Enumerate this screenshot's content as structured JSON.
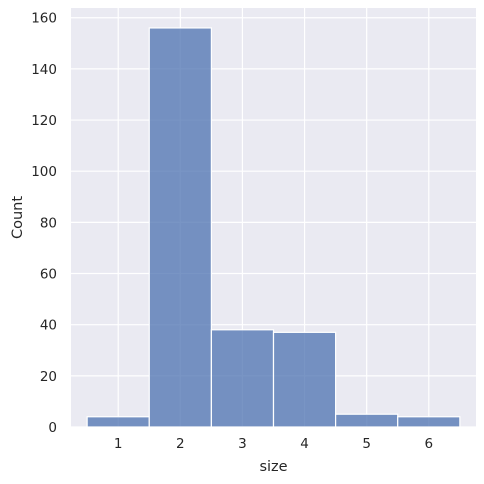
{
  "chart_data": {
    "type": "bar",
    "subtype": "histogram",
    "title": "",
    "xlabel": "size",
    "ylabel": "Count",
    "categories": [
      "1",
      "2",
      "3",
      "4",
      "5",
      "6"
    ],
    "bins": [
      {
        "start": 0.5,
        "end": 1.5,
        "count": 4
      },
      {
        "start": 1.5,
        "end": 2.5,
        "count": 156
      },
      {
        "start": 2.5,
        "end": 3.5,
        "count": 38
      },
      {
        "start": 3.5,
        "end": 4.5,
        "count": 37
      },
      {
        "start": 4.5,
        "end": 5.5,
        "count": 5
      },
      {
        "start": 5.5,
        "end": 6.5,
        "count": 4
      }
    ],
    "xlim": [
      0.24,
      6.76
    ],
    "ylim": [
      0,
      163.8
    ],
    "xticks": [
      1,
      2,
      3,
      4,
      5,
      6
    ],
    "yticks": [
      0,
      20,
      40,
      60,
      80,
      100,
      120,
      140,
      160
    ],
    "grid": true,
    "legend": "none",
    "colors": {
      "background": "#eaeaf2",
      "grid": "#ffffff",
      "bar": "#4c72b0",
      "bar_edge": "#ffffff",
      "text": "#262626"
    }
  }
}
